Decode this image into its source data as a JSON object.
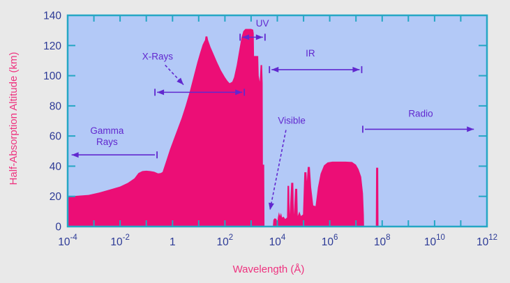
{
  "chart_data": {
    "type": "area",
    "title": "",
    "xlabel": "Wavelength (Å)",
    "ylabel": "Half-Absorption Altitude (km)",
    "x_scale": "log10",
    "x_range_log10": [
      -4,
      12
    ],
    "ylim": [
      0,
      140
    ],
    "grid": false,
    "x_tick_labels": [
      "10^-4",
      "10^-2",
      "1",
      "10^2",
      "10^4",
      "10^6",
      "10^8",
      "10^10",
      "10^12"
    ],
    "x_tick_label_pos_log10": [
      -4,
      -2,
      0,
      2,
      4,
      6,
      8,
      10,
      12
    ],
    "x_minor_tick_step_decades": 1,
    "y_ticks": [
      0,
      20,
      40,
      60,
      80,
      100,
      120,
      140
    ],
    "series_name": "half-absorption-altitude",
    "curve_points_log10x_km": [
      [
        -4,
        20
      ],
      [
        -3.6,
        20.4
      ],
      [
        -3.2,
        21
      ],
      [
        -2.8,
        22.5
      ],
      [
        -2.4,
        24.5
      ],
      [
        -2.0,
        26.5
      ],
      [
        -1.7,
        29
      ],
      [
        -1.45,
        32
      ],
      [
        -1.3,
        35.5
      ],
      [
        -1.15,
        36.8
      ],
      [
        -1.0,
        37
      ],
      [
        -0.85,
        36.8
      ],
      [
        -0.7,
        36.3
      ],
      [
        -0.55,
        35.2
      ],
      [
        -0.45,
        35.5
      ],
      [
        -0.38,
        36.2
      ],
      [
        -0.25,
        43
      ],
      [
        -0.1,
        51
      ],
      [
        0.05,
        58
      ],
      [
        0.2,
        65
      ],
      [
        0.35,
        72
      ],
      [
        0.5,
        80
      ],
      [
        0.65,
        89
      ],
      [
        0.8,
        99
      ],
      [
        0.95,
        109
      ],
      [
        1.05,
        115
      ],
      [
        1.15,
        120.5
      ],
      [
        1.22,
        123
      ],
      [
        1.24,
        123.5
      ],
      [
        1.26,
        126
      ],
      [
        1.33,
        126
      ],
      [
        1.36,
        123.5
      ],
      [
        1.45,
        119
      ],
      [
        1.55,
        115
      ],
      [
        1.7,
        109
      ],
      [
        1.85,
        103.5
      ],
      [
        2.0,
        99
      ],
      [
        2.1,
        96.5
      ],
      [
        2.18,
        95
      ],
      [
        2.28,
        96
      ],
      [
        2.35,
        99
      ],
      [
        2.45,
        107
      ],
      [
        2.55,
        117
      ],
      [
        2.63,
        125
      ],
      [
        2.7,
        129.5
      ],
      [
        2.78,
        131
      ],
      [
        3.0,
        131
      ],
      [
        3.08,
        130.5
      ],
      [
        3.1,
        128
      ],
      [
        3.11,
        113
      ],
      [
        3.27,
        113
      ],
      [
        3.29,
        100
      ],
      [
        3.33,
        96
      ],
      [
        3.36,
        107
      ],
      [
        3.42,
        107
      ],
      [
        3.44,
        95
      ],
      [
        3.45,
        41
      ],
      [
        3.5,
        41
      ],
      [
        3.51,
        0
      ],
      [
        3.83,
        0
      ],
      [
        3.85,
        4.5
      ],
      [
        3.9,
        5.5
      ],
      [
        3.97,
        5
      ],
      [
        3.99,
        0
      ],
      [
        4.02,
        6
      ],
      [
        4.06,
        9.5
      ],
      [
        4.1,
        7
      ],
      [
        4.14,
        9
      ],
      [
        4.18,
        6
      ],
      [
        4.24,
        6.5
      ],
      [
        4.3,
        5
      ],
      [
        4.37,
        6
      ],
      [
        4.39,
        27
      ],
      [
        4.45,
        27
      ],
      [
        4.47,
        8
      ],
      [
        4.53,
        29
      ],
      [
        4.61,
        29
      ],
      [
        4.63,
        8
      ],
      [
        4.68,
        25
      ],
      [
        4.76,
        25
      ],
      [
        4.78,
        7
      ],
      [
        4.84,
        10
      ],
      [
        4.9,
        7
      ],
      [
        4.98,
        8
      ],
      [
        5.03,
        36
      ],
      [
        5.11,
        36
      ],
      [
        5.13,
        30
      ],
      [
        5.16,
        39.5
      ],
      [
        5.24,
        39.5
      ],
      [
        5.29,
        26
      ],
      [
        5.37,
        14
      ],
      [
        5.46,
        13.5
      ],
      [
        5.55,
        26
      ],
      [
        5.65,
        35
      ],
      [
        5.78,
        40.5
      ],
      [
        5.92,
        42.5
      ],
      [
        6.1,
        43
      ],
      [
        6.6,
        43
      ],
      [
        6.85,
        42.8
      ],
      [
        7.0,
        41
      ],
      [
        7.1,
        38
      ],
      [
        7.2,
        33
      ],
      [
        7.27,
        22
      ],
      [
        7.3,
        8
      ],
      [
        7.31,
        0
      ],
      [
        7.76,
        0
      ],
      [
        7.77,
        39
      ],
      [
        7.85,
        39
      ],
      [
        7.86,
        0
      ],
      [
        12,
        0
      ]
    ],
    "annotations": [
      {
        "id": "gamma-rays",
        "label": "Gamma\nRays",
        "label_log10x": -2.5,
        "label_km": 60.5,
        "range_arrow": {
          "from_log10x": -3.85,
          "to_log10x": -0.67,
          "km": 47.5,
          "head_left": true,
          "head_right": false,
          "bar_left": false,
          "bar_right": true
        }
      },
      {
        "id": "x-rays",
        "label": "X-Rays",
        "label_log10x": -0.57,
        "label_km": 113,
        "range_arrow": {
          "from_log10x": -0.59,
          "to_log10x": 2.66,
          "km": 89,
          "head_left": true,
          "head_right": true,
          "bar_left": true,
          "bar_right": true
        },
        "pointer_arrow": {
          "from": [
            -0.28,
            107
          ],
          "to": [
            0.42,
            94
          ]
        }
      },
      {
        "id": "uv",
        "label": "UV",
        "label_log10x": 3.43,
        "label_km": 135,
        "range_arrow": {
          "from_log10x": 2.66,
          "to_log10x": 3.45,
          "km": 125.5,
          "head_left": true,
          "head_right": true,
          "bar_left": true,
          "bar_right": true
        }
      },
      {
        "id": "ir",
        "label": "IR",
        "label_log10x": 5.26,
        "label_km": 115,
        "range_arrow": {
          "from_log10x": 3.78,
          "to_log10x": 7.14,
          "km": 104,
          "head_left": true,
          "head_right": true,
          "bar_left": true,
          "bar_right": true
        }
      },
      {
        "id": "visible",
        "label": "Visible",
        "label_log10x": 4.55,
        "label_km": 70.5,
        "pointer_arrow": {
          "from": [
            4.33,
            64
          ],
          "to": [
            3.72,
            11
          ]
        }
      },
      {
        "id": "radio",
        "label": "Radio",
        "label_log10x": 9.47,
        "label_km": 75,
        "range_arrow": {
          "from_log10x": 7.34,
          "to_log10x": 11.5,
          "km": 64.5,
          "head_left": false,
          "head_right": true,
          "bar_left": true,
          "bar_right": false
        }
      }
    ],
    "colors": {
      "page_background": "#e9e9e9",
      "plot_background": "#b3c9f7",
      "area_fill": "#ec0e76",
      "axis_frame": "#25a7c4",
      "tick_labels": "#2c3a96",
      "axis_titles": "#ee337f",
      "annotations": "#6128cf"
    }
  }
}
